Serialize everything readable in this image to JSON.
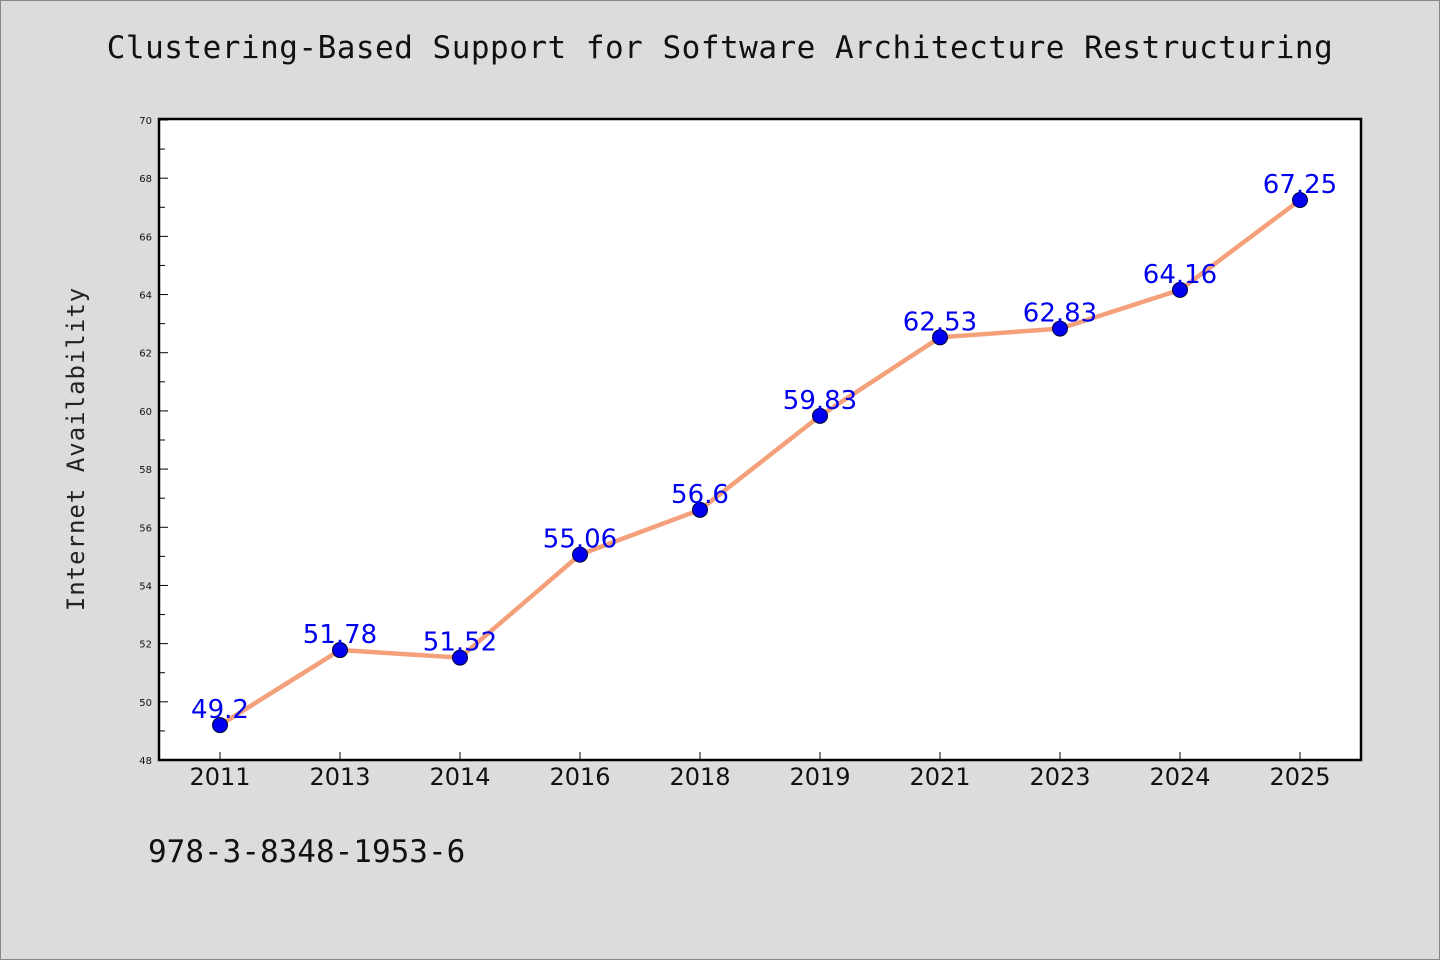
{
  "title": "Clustering-Based Support for Software Architecture Restructuring",
  "footer_text": "978-3-8348-1953-6",
  "chart_data": {
    "type": "line",
    "title": "Clustering-Based Support for Software Architecture Restructuring",
    "xlabel": "",
    "ylabel": "Internet Availability",
    "categories": [
      "2011",
      "2013",
      "2014",
      "2016",
      "2018",
      "2019",
      "2021",
      "2023",
      "2024",
      "2025"
    ],
    "values": [
      49.2,
      51.78,
      51.52,
      55.06,
      56.6,
      59.83,
      62.53,
      62.83,
      64.16,
      67.25
    ],
    "data_labels": [
      "49.2",
      "51.78",
      "51.52",
      "55.06",
      "56.6",
      "59.83",
      "62.53",
      "62.83",
      "64.16",
      "67.25"
    ],
    "ylim": [
      48,
      70
    ],
    "yticks": [
      "48",
      "50",
      "52",
      "54",
      "56",
      "58",
      "60",
      "62",
      "64",
      "66",
      "68",
      "70"
    ],
    "grid": false,
    "legend": "none",
    "colors": {
      "line": "#f4a07a",
      "marker": "#0000ee",
      "label": "#0000ee",
      "plot_background": "#ffffff",
      "page_background": "#dcdcdc"
    }
  }
}
